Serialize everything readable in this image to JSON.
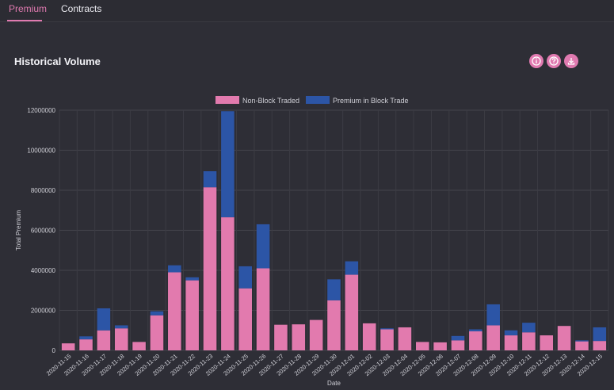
{
  "tabs": [
    {
      "label": "Premium",
      "active": true
    },
    {
      "label": "Contracts",
      "active": false
    }
  ],
  "panel": {
    "title": "Historical Volume",
    "actions": [
      {
        "name": "info-icon"
      },
      {
        "name": "help-icon"
      },
      {
        "name": "download-icon"
      }
    ]
  },
  "colors": {
    "accent": "#e07ab0",
    "non_block": "#e27aae",
    "block": "#2c55a6",
    "background": "#2c2c33",
    "text": "#cfcfd6"
  },
  "chart_data": {
    "type": "bar",
    "stacked": true,
    "categories": [
      "2020-11-15",
      "2020-11-16",
      "2020-11-17",
      "2020-11-18",
      "2020-11-19",
      "2020-11-20",
      "2020-11-21",
      "2020-11-22",
      "2020-11-23",
      "2020-11-24",
      "2020-11-25",
      "2020-11-26",
      "2020-11-27",
      "2020-11-28",
      "2020-11-29",
      "2020-11-30",
      "2020-12-01",
      "2020-12-02",
      "2020-12-03",
      "2020-12-04",
      "2020-12-05",
      "2020-12-06",
      "2020-12-07",
      "2020-12-08",
      "2020-12-09",
      "2020-12-10",
      "2020-12-11",
      "2020-12-12",
      "2020-12-13",
      "2020-12-14",
      "2020-12-15"
    ],
    "series": [
      {
        "name": "Non-Block Traded",
        "values": [
          350000,
          550000,
          1000000,
          1100000,
          420000,
          1750000,
          3900000,
          3500000,
          8150000,
          6650000,
          3100000,
          4100000,
          1280000,
          1300000,
          1520000,
          2500000,
          3780000,
          1350000,
          1050000,
          1150000,
          420000,
          400000,
          500000,
          950000,
          1250000,
          750000,
          900000,
          750000,
          1220000,
          450000,
          470000
        ]
      },
      {
        "name": "Premium in Block Trade",
        "values": [
          0,
          150000,
          1100000,
          150000,
          0,
          200000,
          350000,
          150000,
          800000,
          5300000,
          1100000,
          2200000,
          0,
          0,
          0,
          1050000,
          670000,
          0,
          50000,
          0,
          0,
          0,
          220000,
          100000,
          1050000,
          250000,
          480000,
          0,
          0,
          50000,
          680000
        ]
      }
    ],
    "xlabel": "Date",
    "ylabel": "Total Premium",
    "ylim": [
      0,
      12000000
    ],
    "yticks": [
      0,
      2000000,
      4000000,
      6000000,
      8000000,
      10000000,
      12000000
    ],
    "grid": true,
    "legend_position": "top"
  }
}
